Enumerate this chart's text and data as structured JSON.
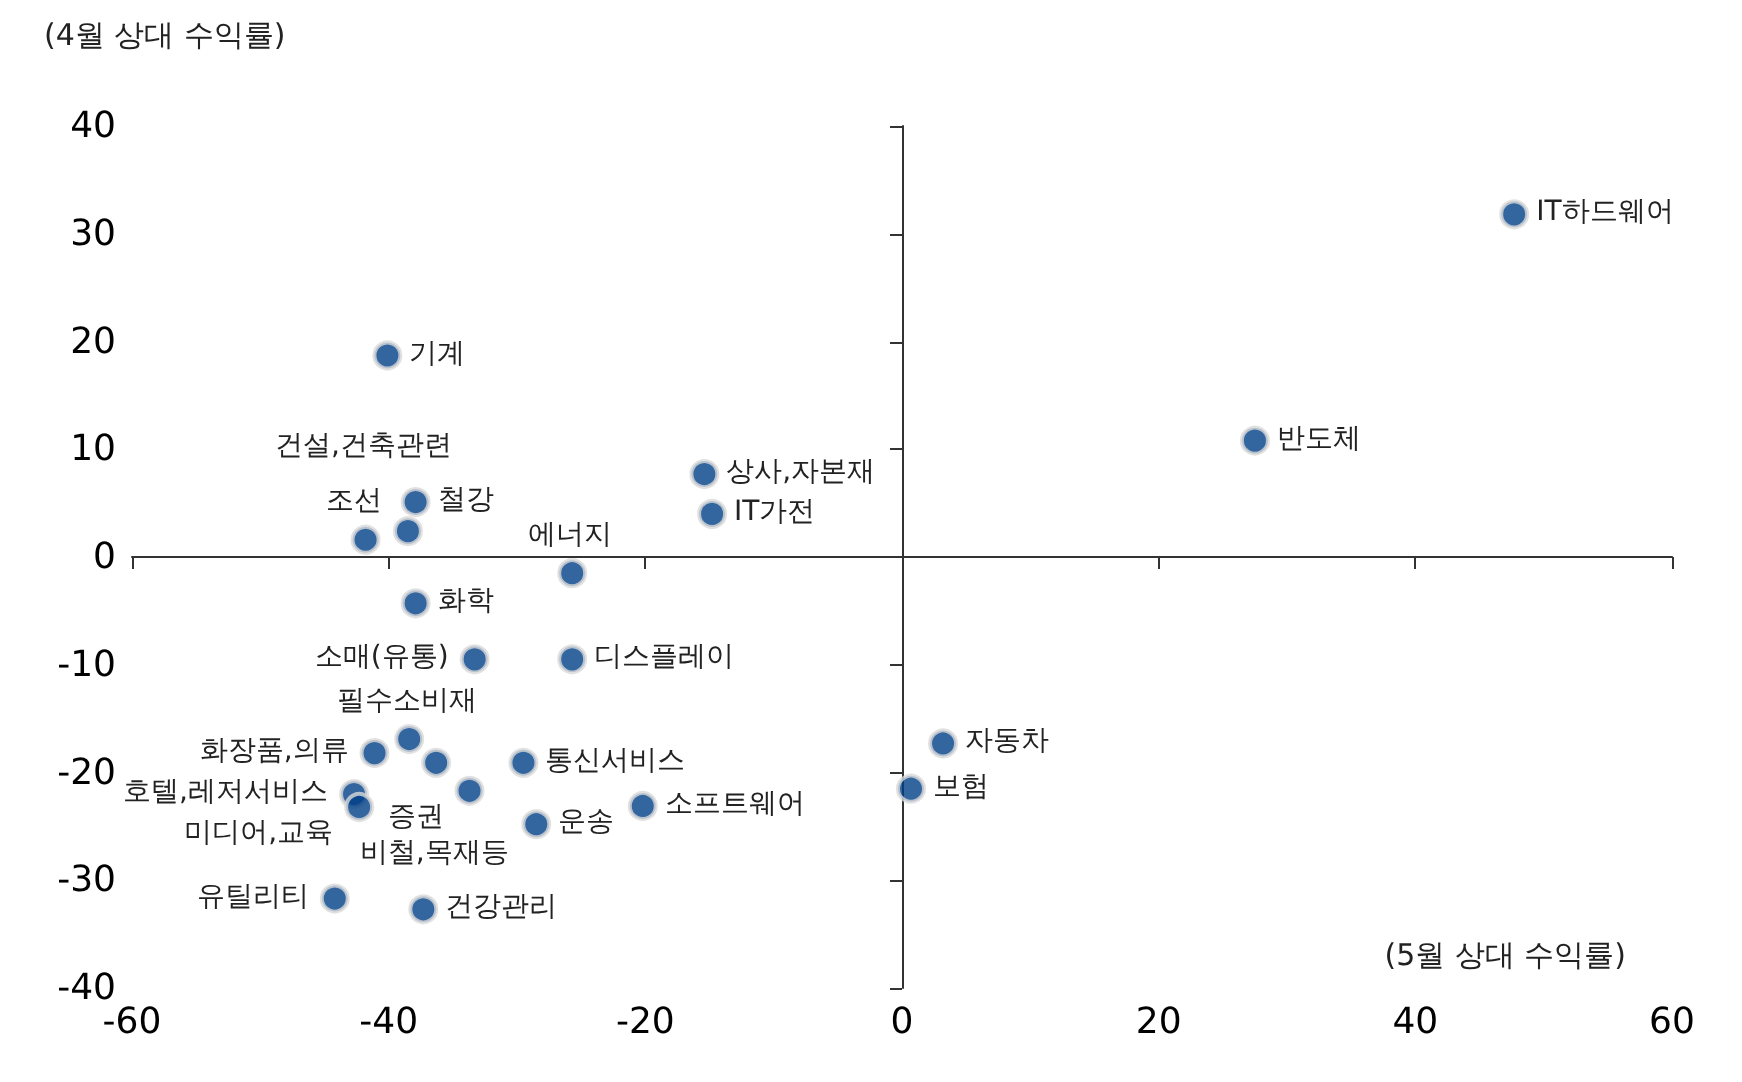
{
  "chart_data": {
    "type": "scatter",
    "xlabel": "(5월 상대 수익률)",
    "ylabel": "(4월 상대 수익률)",
    "x": [
      47.7,
      27.5,
      3.2,
      0.7,
      -15.4,
      -14.8,
      -25.7,
      -25.7,
      -33.3,
      -37.9,
      -40.1,
      -37.9,
      -38.5,
      -41.8,
      -38.4,
      -41.1,
      -36.3,
      -29.5,
      -33.7,
      -42.7,
      -42.3,
      -20.2,
      -28.5,
      -44.2,
      -37.3
    ],
    "series": [
      {
        "color": "#003f87",
        "values": [
          31.8,
          10.8,
          -17.3,
          -21.5,
          7.7,
          4.0,
          -1.5,
          -9.5,
          -9.5,
          -4.3,
          18.7,
          5.1,
          2.4,
          1.6,
          -16.9,
          -18.2,
          -19.1,
          -19.1,
          -21.7,
          -22.0,
          -23.2,
          -23.1,
          -24.8,
          -31.7,
          -32.7
        ]
      }
    ],
    "annotations": [
      {
        "text": "IT하드웨어",
        "x": 47.7,
        "y": 31.8
      },
      {
        "text": "반도체",
        "x": 27.5,
        "y": 10.8
      },
      {
        "text": "자동차",
        "x": 3.2,
        "y": -17.3
      },
      {
        "text": "보험",
        "x": 0.7,
        "y": -21.5
      },
      {
        "text": "상사,자본재",
        "x": -15.4,
        "y": 7.7
      },
      {
        "text": "IT가전",
        "x": -14.8,
        "y": 4.0
      },
      {
        "text": "에너지",
        "x": -25.7,
        "y": -1.5
      },
      {
        "text": "디스플레이",
        "x": -25.7,
        "y": -9.5
      },
      {
        "text": "소매(유통)",
        "x": -33.3,
        "y": -9.5
      },
      {
        "text": "화학",
        "x": -37.9,
        "y": -4.3
      },
      {
        "text": "기계",
        "x": -40.1,
        "y": 18.7
      },
      {
        "text": "철강",
        "x": -37.9,
        "y": 5.1
      },
      {
        "text": "조선",
        "x": -38.5,
        "y": 2.4
      },
      {
        "text": "건설,건축관련",
        "x": -41.8,
        "y": 1.6
      },
      {
        "text": "필수소비재",
        "x": -38.4,
        "y": -16.9
      },
      {
        "text": "화장품,의류",
        "x": -41.1,
        "y": -18.2
      },
      {
        "text": "비철,목재등",
        "x": -36.3,
        "y": -19.1
      },
      {
        "text": "통신서비스",
        "x": -29.5,
        "y": -19.1
      },
      {
        "text": "증권",
        "x": -33.7,
        "y": -21.7
      },
      {
        "text": "호텔,레저서비스",
        "x": -42.7,
        "y": -22.0
      },
      {
        "text": "미디어,교육",
        "x": -42.3,
        "y": -23.2
      },
      {
        "text": "소프트웨어",
        "x": -20.2,
        "y": -23.1
      },
      {
        "text": "운송",
        "x": -28.5,
        "y": -24.8
      },
      {
        "text": "유틸리티",
        "x": -44.2,
        "y": -31.7
      },
      {
        "text": "건강관리",
        "x": -37.3,
        "y": -32.7
      }
    ],
    "xlim": [
      -60,
      60
    ],
    "xticks": [
      -60,
      -40,
      -20,
      0,
      20,
      40,
      60
    ],
    "ylim": [
      -40,
      40
    ],
    "yticks": [
      -40,
      -30,
      -20,
      -10,
      0,
      10,
      20,
      30,
      40
    ],
    "marker": "circle"
  }
}
